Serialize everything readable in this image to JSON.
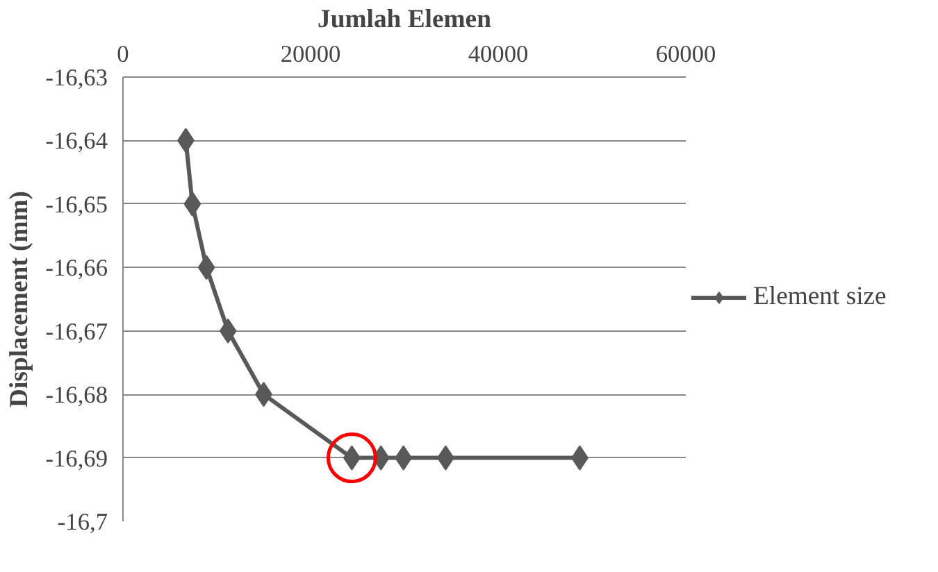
{
  "chart_data": {
    "type": "line",
    "xlabel": "Jumlah Elemen",
    "ylabel": "Displacement (mm)",
    "xlim": [
      0,
      60000
    ],
    "xticks": [
      0,
      20000,
      40000,
      60000
    ],
    "ylim": [
      -16.7,
      -16.63
    ],
    "yticks": [
      {
        "value": -16.7,
        "label": "-16,7"
      },
      {
        "value": -16.69,
        "label": "-16,69"
      },
      {
        "value": -16.68,
        "label": "-16,68"
      },
      {
        "value": -16.67,
        "label": "-16,67"
      },
      {
        "value": -16.66,
        "label": "-16,66"
      },
      {
        "value": -16.65,
        "label": "-16,65"
      },
      {
        "value": -16.64,
        "label": "-16,64"
      },
      {
        "value": -16.63,
        "label": "-16,63"
      }
    ],
    "grid": "y",
    "legend": "right",
    "marker": "diamond",
    "line_style": "solid",
    "series": [
      {
        "name": "Element size",
        "color": "#595959",
        "x": [
          6700,
          7400,
          8900,
          11200,
          15000,
          24400,
          27500,
          29900,
          34400,
          48700
        ],
        "values": [
          -16.64,
          -16.65,
          -16.66,
          -16.67,
          -16.68,
          -16.69,
          -16.69,
          -16.69,
          -16.69,
          -16.69
        ]
      },
      {
        "type": "scatter",
        "marker": "circle",
        "color": "#ff0000",
        "x": [
          24400
        ],
        "values": [
          -16.69
        ]
      }
    ]
  }
}
